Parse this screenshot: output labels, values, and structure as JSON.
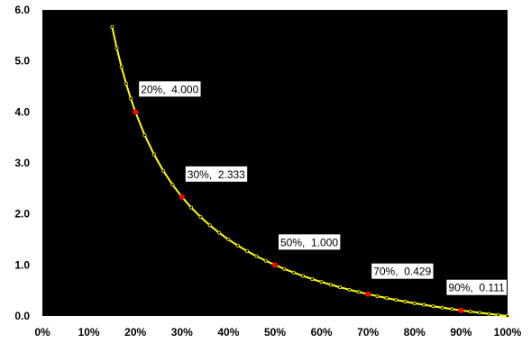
{
  "chart_data": {
    "type": "line",
    "title": "",
    "xlabel": "",
    "ylabel": "",
    "x_ticks": [
      "0%",
      "10%",
      "20%",
      "30%",
      "40%",
      "50%",
      "60%",
      "70%",
      "80%",
      "90%",
      "100%"
    ],
    "y_ticks": [
      "0.0",
      "1.0",
      "2.0",
      "3.0",
      "4.0",
      "5.0",
      "6.0"
    ],
    "xlim": [
      0,
      100
    ],
    "ylim": [
      0,
      6
    ],
    "grid": false,
    "legend": "none",
    "series": [
      {
        "formula": "(1 - p) / p",
        "x": [
          15,
          16,
          17,
          18,
          19,
          20,
          22,
          24,
          26,
          28,
          30,
          32,
          34,
          36,
          38,
          40,
          42,
          44,
          46,
          48,
          50,
          52,
          54,
          56,
          58,
          60,
          62,
          64,
          66,
          68,
          70,
          72,
          74,
          76,
          78,
          80,
          82,
          84,
          86,
          88,
          90,
          92,
          94,
          96,
          98,
          100
        ],
        "y": [
          5.667,
          5.25,
          4.882,
          4.556,
          4.263,
          4.0,
          3.545,
          3.167,
          2.846,
          2.571,
          2.333,
          2.125,
          1.941,
          1.778,
          1.632,
          1.5,
          1.381,
          1.273,
          1.174,
          1.083,
          1.0,
          0.923,
          0.852,
          0.786,
          0.724,
          0.667,
          0.613,
          0.563,
          0.515,
          0.471,
          0.429,
          0.389,
          0.351,
          0.316,
          0.282,
          0.25,
          0.22,
          0.19,
          0.163,
          0.136,
          0.111,
          0.087,
          0.064,
          0.042,
          0.02,
          0.0
        ]
      }
    ],
    "highlighted_points": [
      {
        "x": 20,
        "y": 4.0,
        "label": "20%,  4.000"
      },
      {
        "x": 30,
        "y": 2.333,
        "label": "30%,  2.333"
      },
      {
        "x": 50,
        "y": 1.0,
        "label": "50%,  1.000"
      },
      {
        "x": 70,
        "y": 0.429,
        "label": "70%,  0.429"
      },
      {
        "x": 90,
        "y": 0.111,
        "label": "90%,  0.111"
      }
    ],
    "colors": {
      "plot_background": "#000000",
      "page_background": "#ffffff",
      "line": "#ffff00",
      "markers": "#ffff00",
      "highlight": "#ff0000",
      "label_background": "#ffffff"
    }
  }
}
